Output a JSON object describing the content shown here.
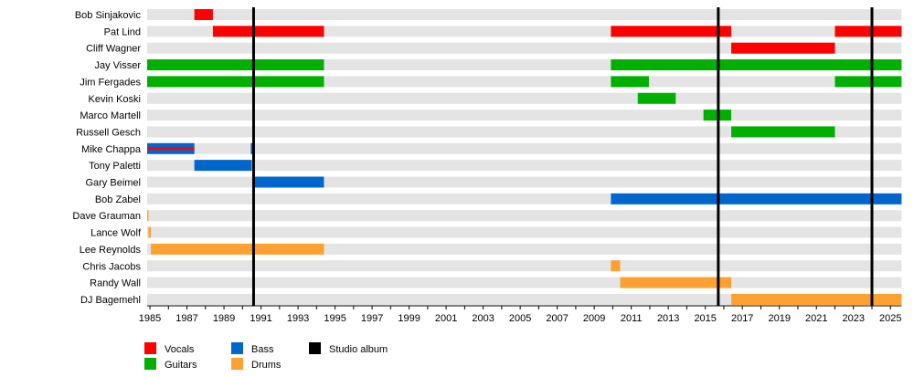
{
  "chart_data": {
    "type": "timeline",
    "title": "",
    "xlim": [
      1984.85,
      2025.6
    ],
    "x_ticks": [
      1985,
      1987,
      1989,
      1991,
      1993,
      1995,
      1997,
      1999,
      2001,
      2003,
      2005,
      2007,
      2009,
      2011,
      2013,
      2015,
      2017,
      2019,
      2021,
      2023,
      2025
    ],
    "minor_ticks_every": 1,
    "legend_placement": "bottom-left",
    "roles": {
      "vocals": {
        "label": "Vocals",
        "color": "#ff0000"
      },
      "guitars": {
        "label": "Guitars",
        "color": "#00b000"
      },
      "bass": {
        "label": "Bass",
        "color": "#0066cc"
      },
      "drums": {
        "label": "Drums",
        "color": "#ffa030"
      },
      "album": {
        "label": "Studio album",
        "color": "#000000"
      }
    },
    "legend_order": [
      "vocals",
      "guitars",
      "bass",
      "drums",
      "album"
    ],
    "studio_albums": [
      1990.6,
      2015.7,
      2024.0
    ],
    "members": [
      {
        "name": "Bob Sinjakovic",
        "spans": [
          {
            "role": "vocals",
            "start": 1987.4,
            "end": 1988.4
          }
        ]
      },
      {
        "name": "Pat Lind",
        "spans": [
          {
            "role": "vocals",
            "start": 1988.4,
            "end": 1994.4
          },
          {
            "role": "vocals",
            "start": 2009.9,
            "end": 2016.4
          },
          {
            "role": "vocals",
            "start": 2022.0,
            "end": 2025.6
          }
        ]
      },
      {
        "name": "Cliff Wagner",
        "spans": [
          {
            "role": "vocals",
            "start": 2016.4,
            "end": 2022.0
          }
        ]
      },
      {
        "name": "Jay Visser",
        "spans": [
          {
            "role": "guitars",
            "start": 1984.85,
            "end": 1994.4
          },
          {
            "role": "guitars",
            "start": 2009.9,
            "end": 2025.6
          }
        ]
      },
      {
        "name": "Jim Fergades",
        "spans": [
          {
            "role": "guitars",
            "start": 1984.85,
            "end": 1994.4
          },
          {
            "role": "guitars",
            "start": 2009.9,
            "end": 2011.95
          },
          {
            "role": "guitars",
            "start": 2022.0,
            "end": 2025.6
          }
        ]
      },
      {
        "name": "Kevin Koski",
        "spans": [
          {
            "role": "guitars",
            "start": 2011.35,
            "end": 2013.4
          }
        ]
      },
      {
        "name": "Marco Martell",
        "spans": [
          {
            "role": "guitars",
            "start": 2014.9,
            "end": 2016.4
          }
        ]
      },
      {
        "name": "Russell Gesch",
        "spans": [
          {
            "role": "guitars",
            "start": 2016.4,
            "end": 2022.0
          }
        ]
      },
      {
        "name": "Mike Chappa",
        "spans": [
          {
            "role": "bass",
            "start": 1984.85,
            "end": 1987.4,
            "stripe": "vocals"
          },
          {
            "role": "bass",
            "start": 1990.45,
            "end": 1990.6
          }
        ]
      },
      {
        "name": "Tony Paletti",
        "spans": [
          {
            "role": "bass",
            "start": 1987.4,
            "end": 1990.5
          }
        ]
      },
      {
        "name": "Gary Beimel",
        "spans": [
          {
            "role": "bass",
            "start": 1990.6,
            "end": 1994.4
          }
        ]
      },
      {
        "name": "Bob Zabel",
        "spans": [
          {
            "role": "bass",
            "start": 2009.9,
            "end": 2025.6
          }
        ]
      },
      {
        "name": "Dave Grauman",
        "spans": [
          {
            "role": "drums",
            "start": 1984.85,
            "end": 1984.92
          }
        ]
      },
      {
        "name": "Lance Wolf",
        "spans": [
          {
            "role": "drums",
            "start": 1984.92,
            "end": 1985.05
          }
        ]
      },
      {
        "name": "Lee Reynolds",
        "spans": [
          {
            "role": "drums",
            "start": 1985.05,
            "end": 1994.4
          }
        ]
      },
      {
        "name": "Chris Jacobs",
        "spans": [
          {
            "role": "drums",
            "start": 2009.9,
            "end": 2010.4
          }
        ]
      },
      {
        "name": "Randy Wall",
        "spans": [
          {
            "role": "drums",
            "start": 2010.4,
            "end": 2016.4
          }
        ]
      },
      {
        "name": "DJ Bagemehl",
        "spans": [
          {
            "role": "drums",
            "start": 2016.4,
            "end": 2025.6
          }
        ]
      }
    ]
  }
}
